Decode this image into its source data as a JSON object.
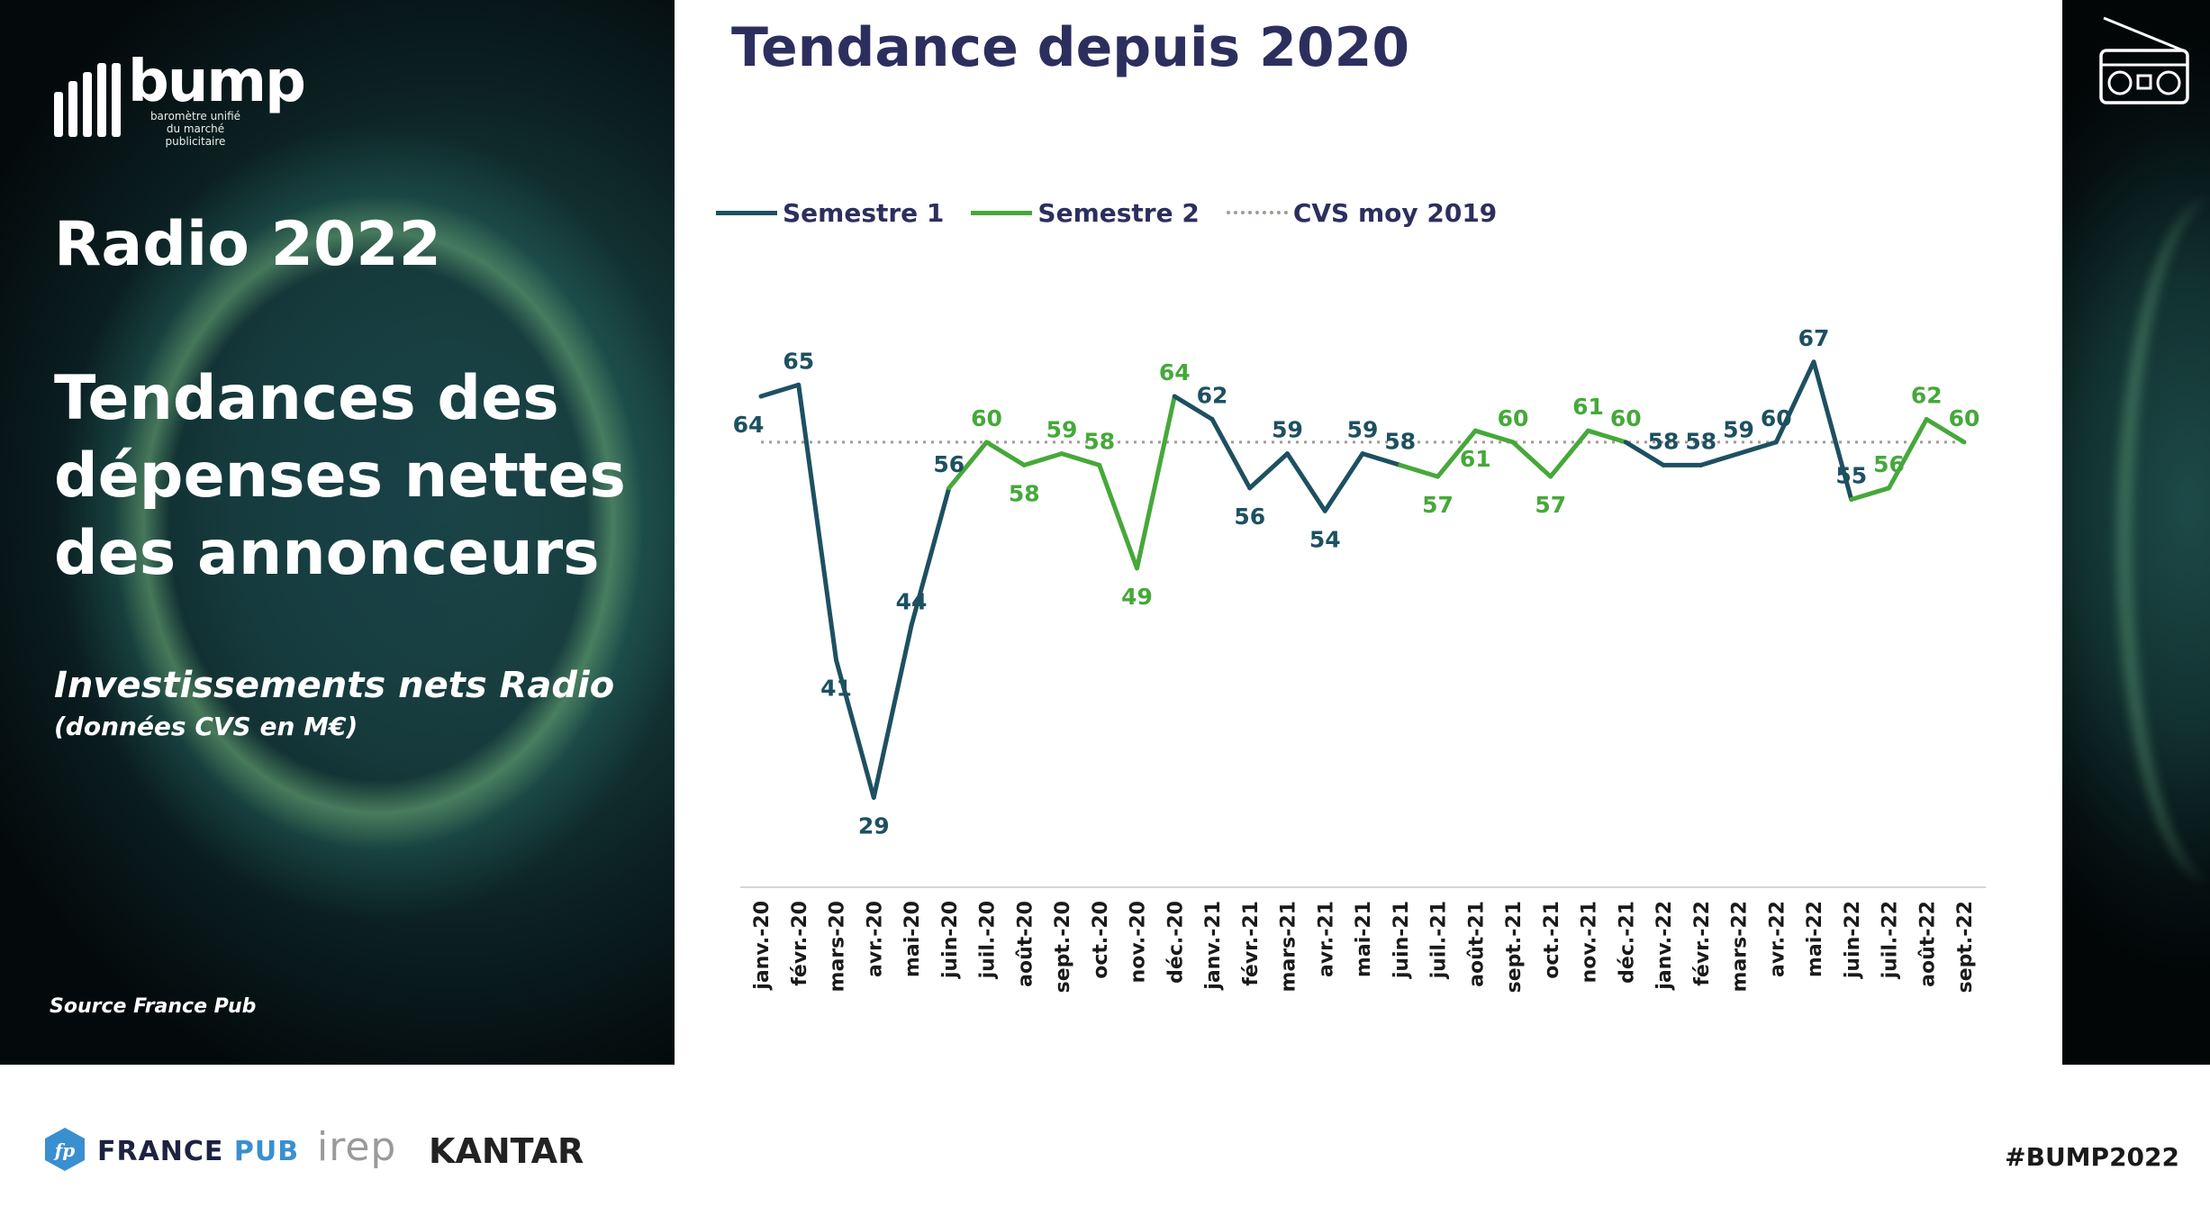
{
  "brand": {
    "name": "bump",
    "tagline_1": "baromètre unifié",
    "tagline_2": "du marché publicitaire"
  },
  "left": {
    "title": "Radio 2022",
    "main_title_1": "Tendances des",
    "main_title_2": "dépenses nettes",
    "main_title_3": "des annonceurs",
    "subtitle": "Investissements nets Radio",
    "subtitle_note": "(données CVS en M€)",
    "source": "Source France Pub"
  },
  "footer": {
    "partner_1_a": "FRANCE",
    "partner_1_b": "PUB",
    "partner_1_icon_text": "fp",
    "partner_2": "irep",
    "partner_3": "KANTAR",
    "hashtag": "#BUMP2022"
  },
  "icons": {
    "radio": "radio-icon"
  },
  "colors": {
    "semestre1": "#1d5061",
    "semestre2": "#46a83a",
    "cvs": "#a39a95",
    "title": "#2c2f5e"
  },
  "chart_data": {
    "type": "line",
    "title": "Tendance depuis 2020",
    "categories": [
      "janv.-20",
      "févr.-20",
      "mars-20",
      "avr.-20",
      "mai-20",
      "juin-20",
      "juil.-20",
      "août-20",
      "sept.-20",
      "oct.-20",
      "nov.-20",
      "déc.-20",
      "janv.-21",
      "févr.-21",
      "mars-21",
      "avr.-21",
      "mai-21",
      "juin-21",
      "juil.-21",
      "août-21",
      "sept.-21",
      "oct.-21",
      "nov.-21",
      "déc.-21",
      "janv.-22",
      "févr.-22",
      "mars-22",
      "avr.-22",
      "mai-22",
      "juin-22",
      "juil.-22",
      "août-22",
      "sept.-22"
    ],
    "values": [
      64,
      65,
      41,
      29,
      44,
      56,
      60,
      58,
      59,
      58,
      49,
      64,
      62,
      56,
      59,
      54,
      59,
      58,
      57,
      61,
      60,
      57,
      61,
      60,
      58,
      58,
      59,
      60,
      67,
      55,
      56,
      62,
      60
    ],
    "segment": [
      1,
      1,
      1,
      1,
      1,
      1,
      2,
      2,
      2,
      2,
      2,
      2,
      1,
      1,
      1,
      1,
      1,
      1,
      2,
      2,
      2,
      2,
      2,
      2,
      1,
      1,
      1,
      1,
      1,
      1,
      2,
      2,
      2
    ],
    "series": [
      {
        "name": "Semestre 1",
        "color": "#1d5061"
      },
      {
        "name": "Semestre 2",
        "color": "#46a83a"
      }
    ],
    "reference": {
      "name": "CVS moy 2019",
      "value": 60,
      "color": "#a39a95",
      "style": "dotted"
    },
    "xlabel": "",
    "ylabel": "",
    "ylim": [
      20,
      75
    ],
    "grid": false,
    "legend": "top-left"
  }
}
